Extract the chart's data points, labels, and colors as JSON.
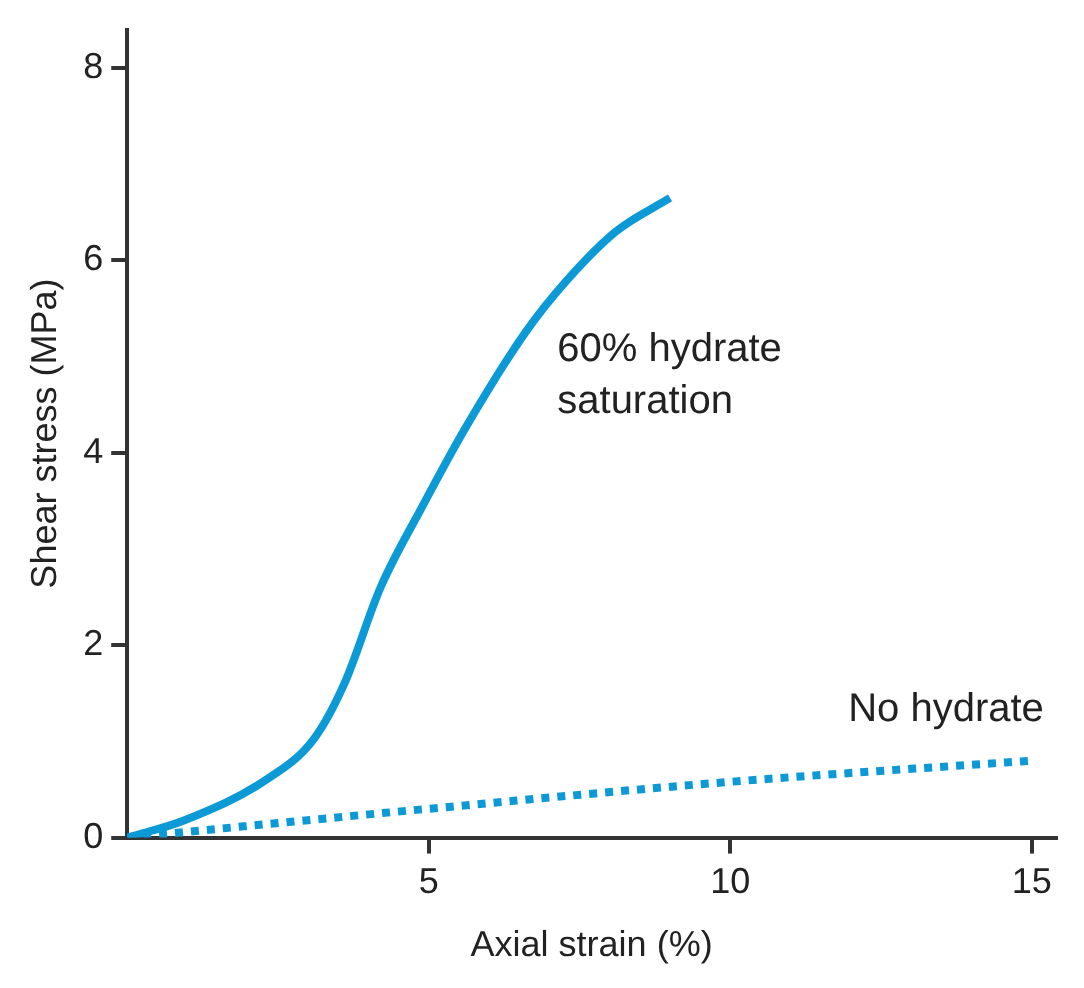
{
  "chart_data": {
    "type": "line",
    "xlabel": "Axial strain (%)",
    "ylabel": "Shear stress (MPa)",
    "xlim": [
      0,
      15.4
    ],
    "xticks": [
      5,
      10,
      15
    ],
    "ylim": [
      0,
      8.4
    ],
    "yticks": [
      0,
      2,
      4,
      6,
      8
    ],
    "grid": false,
    "legend": false,
    "marker": "none",
    "series": [
      {
        "name": "60% hydrate saturation",
        "color": "#0c9ad6",
        "line_style": "solid",
        "x": [
          0,
          0.95,
          2.3,
          3.1,
          3.6,
          4.2,
          4.9,
          5.6,
          6.6,
          7.3,
          8.1,
          9.0
        ],
        "values": [
          0,
          0.18,
          0.6,
          1.03,
          1.6,
          2.6,
          3.45,
          4.25,
          5.25,
          5.8,
          6.3,
          6.65
        ]
      },
      {
        "name": "No hydrate",
        "color": "#0c9ad6",
        "line_style": "dotted",
        "x": [
          0,
          5,
          10,
          15
        ],
        "values": [
          0,
          0.3,
          0.58,
          0.8
        ]
      }
    ]
  }
}
